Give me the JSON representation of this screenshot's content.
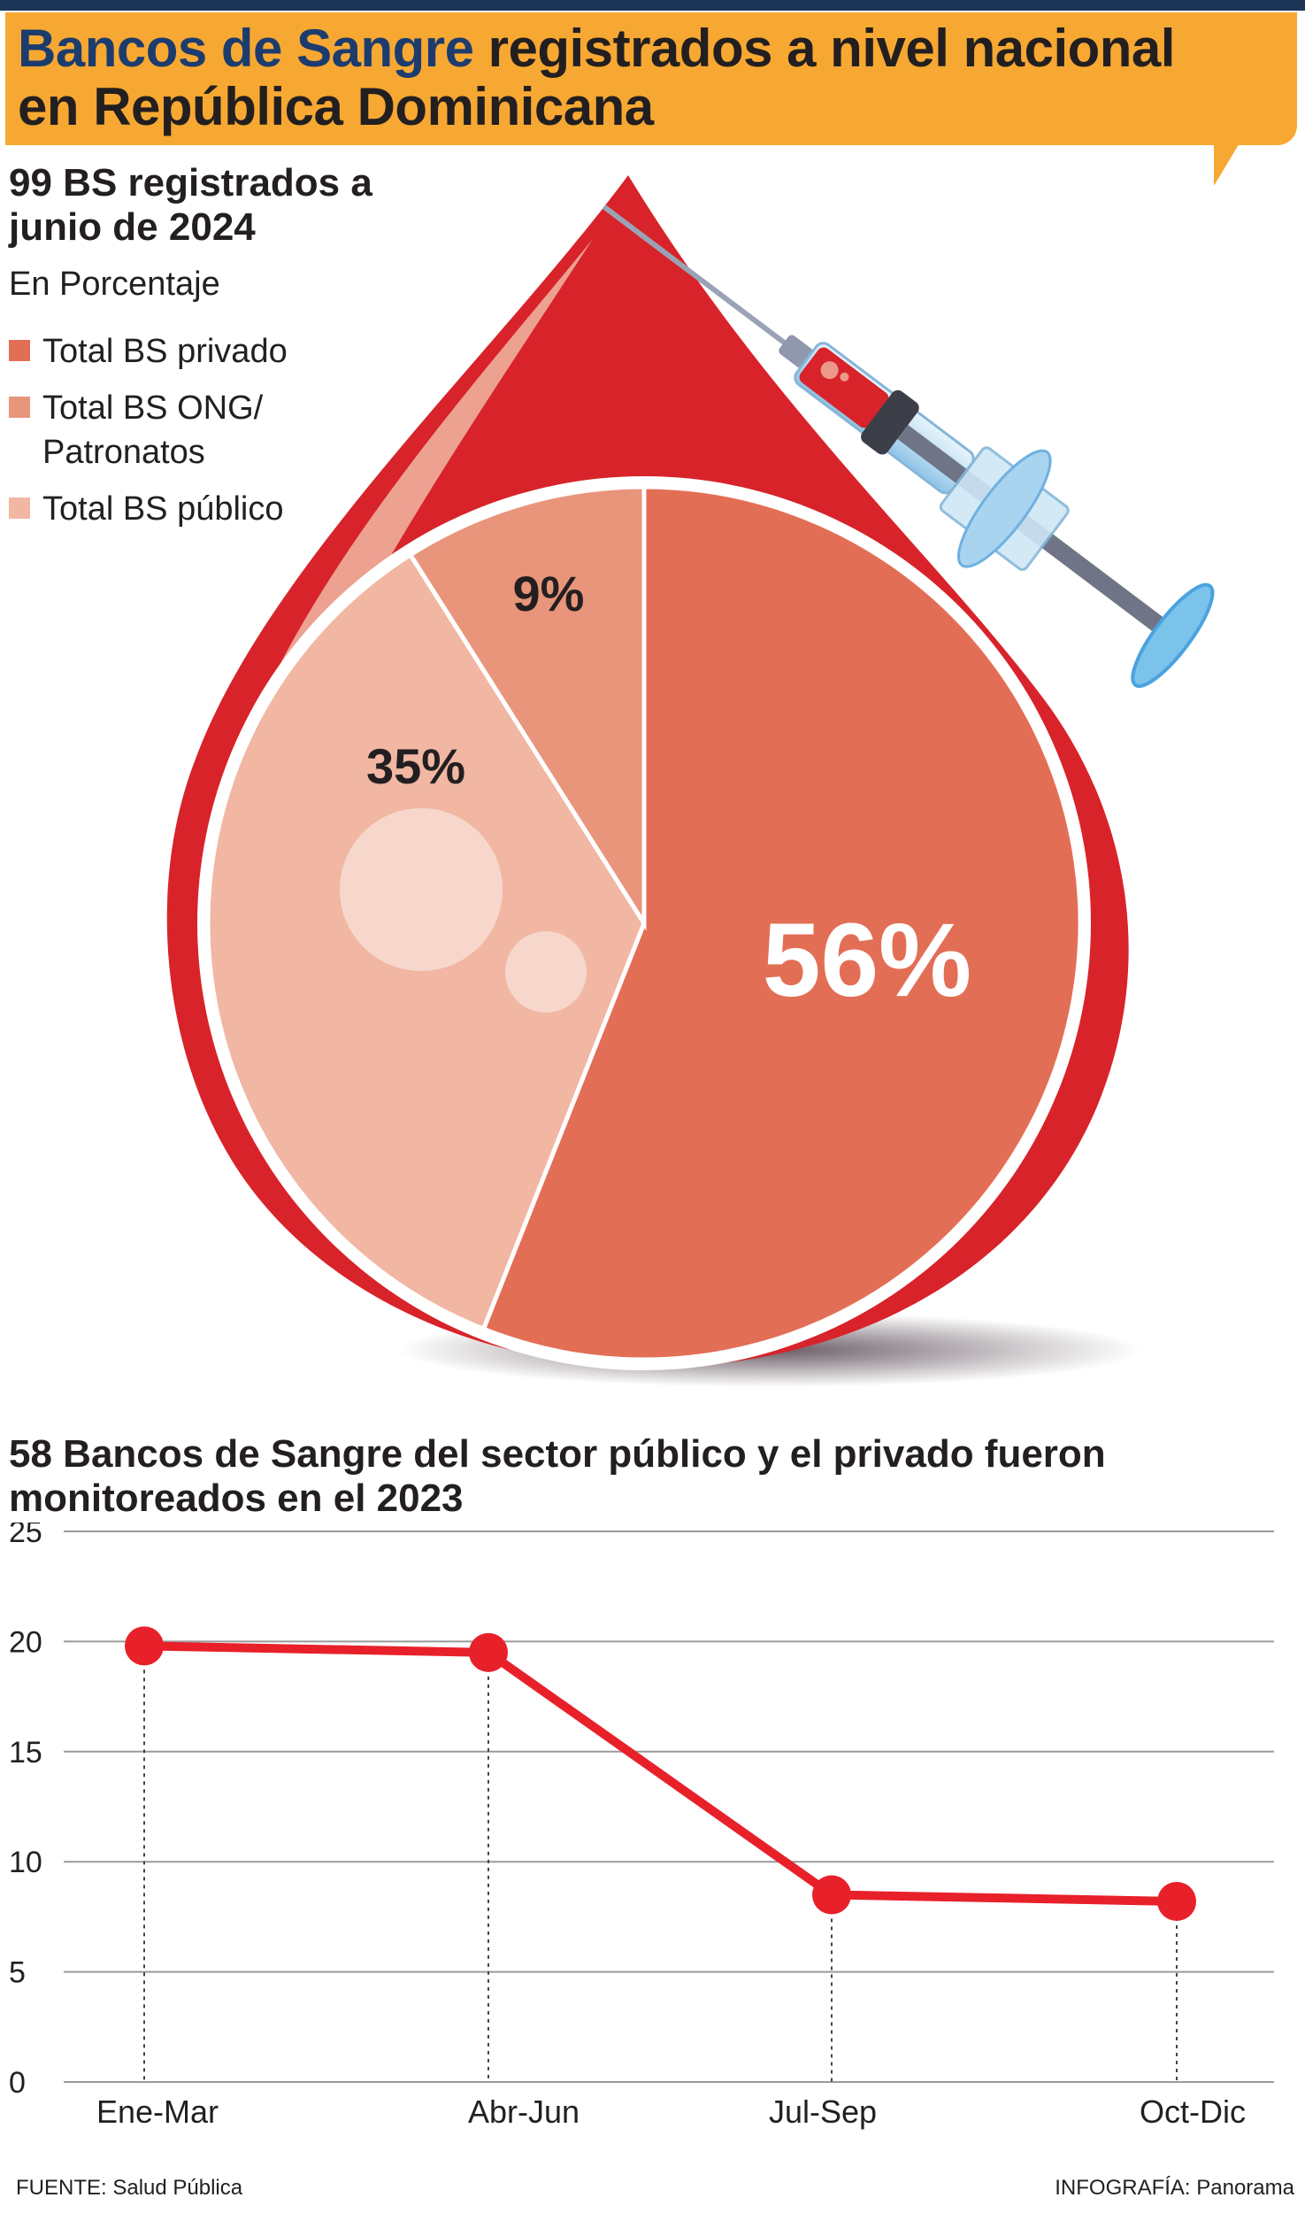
{
  "header": {
    "title_accent": "Bancos de Sangre",
    "title_rest": " registrados a nivel nacional",
    "title_line2": "en República Dominicana"
  },
  "colors": {
    "header_bg": "#f7a832",
    "title_accent": "#1d3c6e",
    "drop_red": "#d8232a",
    "privado": "#e36e56",
    "ong": "#e8957b",
    "publico": "#f1b7a3",
    "line_red": "#e8202a"
  },
  "chart_data": [
    {
      "type": "pie",
      "title": "99 BS registrados a junio de 2024",
      "subtitle": "En Porcentaje",
      "legend_placement": "top-left",
      "slices": [
        {
          "label": "Total BS privado",
          "value": 56,
          "display": "56%",
          "color": "#e36e56"
        },
        {
          "label": "Total BS ONG/ Patronatos",
          "value": 9,
          "display": "9%",
          "color": "#e8957b"
        },
        {
          "label": "Total BS público",
          "value": 35,
          "display": "35%",
          "color": "#f1b7a3"
        }
      ]
    },
    {
      "type": "line",
      "title": "58 Bancos de Sangre del sector público y el privado fueron monitoreados en el 2023",
      "categories": [
        "Ene-Mar",
        "Abr-Jun",
        "Jul-Sep",
        "Oct-Dic"
      ],
      "values": [
        19.8,
        19.5,
        8.5,
        8.2
      ],
      "ylim": [
        0,
        25
      ],
      "yticks": [
        "0",
        "5",
        "10",
        "15",
        "20",
        "25"
      ],
      "grid": true
    }
  ],
  "footer": {
    "source": "FUENTE: Salud Pública",
    "credit": "INFOGRAFÍA: Panorama"
  }
}
